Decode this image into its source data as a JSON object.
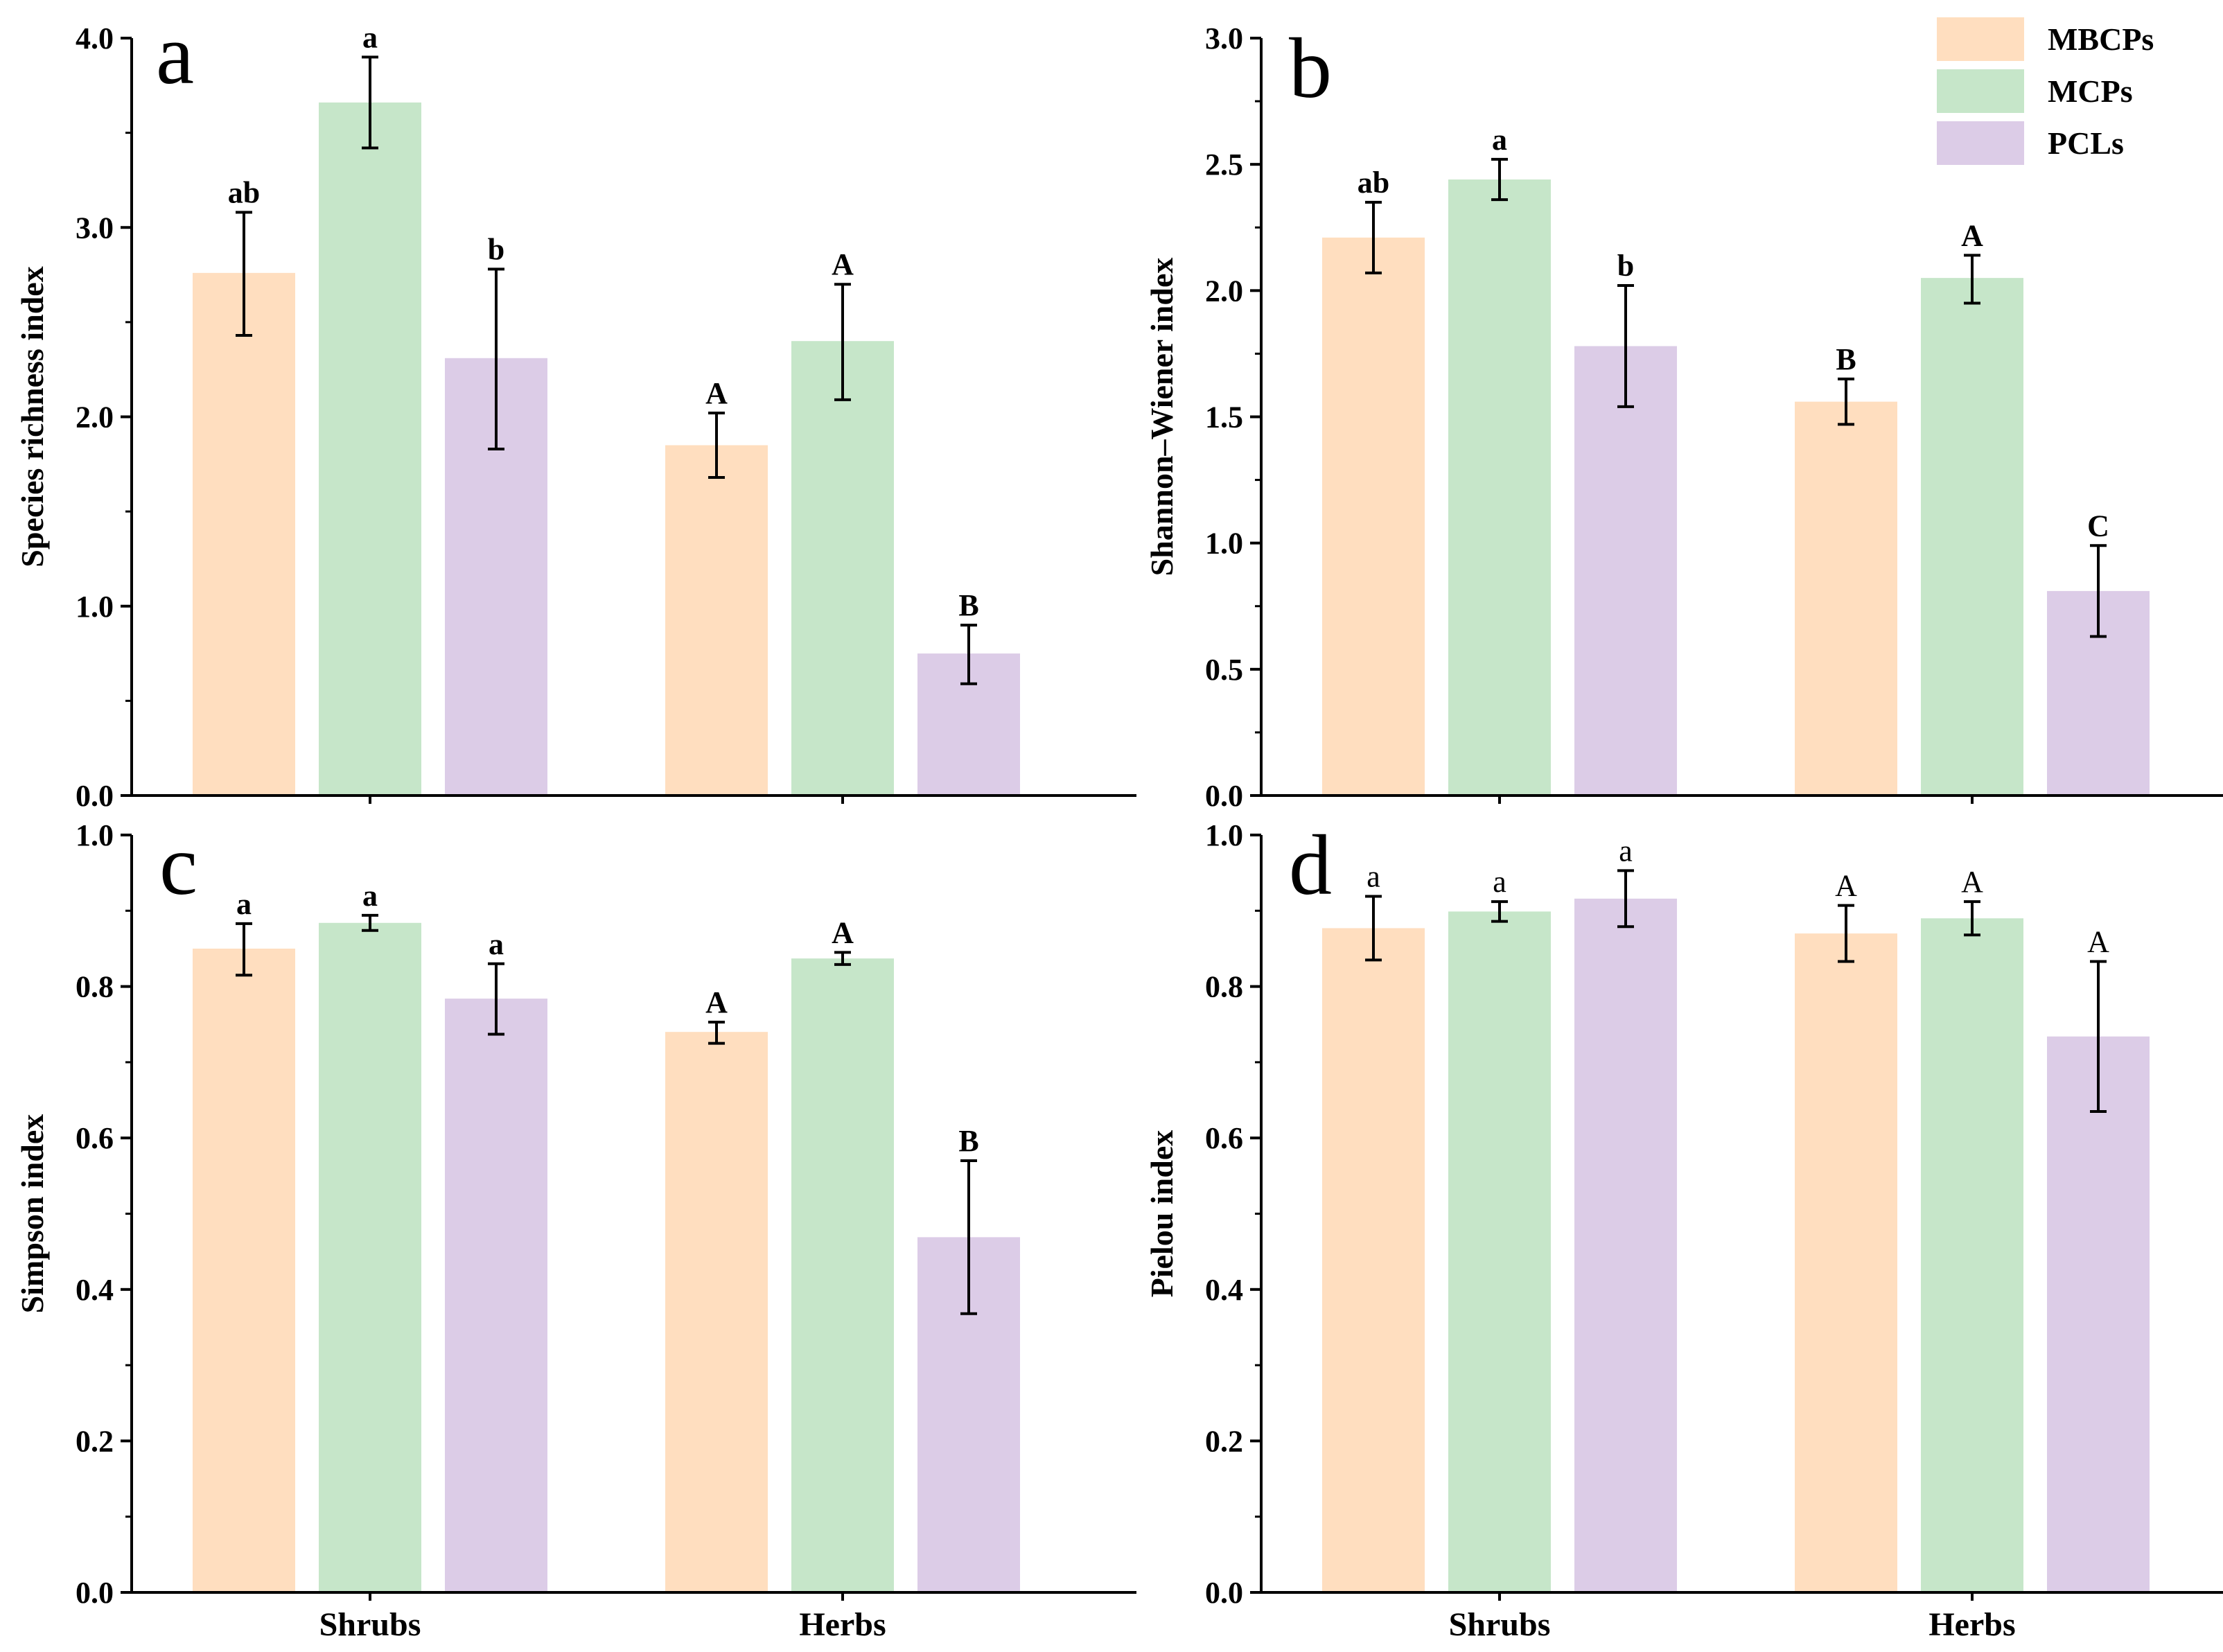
{
  "legend": [
    {
      "name": "MBCPs",
      "color": "#FFDEBF"
    },
    {
      "name": "MCPs",
      "color": "#C6E6C9"
    },
    {
      "name": "PCLs",
      "color": "#DCCCE7"
    }
  ],
  "chart_data": [
    {
      "panel": "a",
      "type": "bar",
      "ylabel": "Species richness index",
      "ylim": [
        0,
        4.0
      ],
      "yticks": [
        "0.0",
        "1.0",
        "2.0",
        "3.0",
        "4.0"
      ],
      "categories": [
        "Shrubs",
        "Herbs"
      ],
      "show_xlabels": false,
      "sig_bold": true,
      "series": [
        {
          "name": "MBCPs",
          "values": [
            2.76,
            1.85
          ],
          "err_low": [
            2.43,
            1.68
          ],
          "err_high": [
            3.08,
            2.02
          ],
          "labels": [
            "ab",
            "A"
          ]
        },
        {
          "name": "MCPs",
          "values": [
            3.66,
            2.4
          ],
          "err_low": [
            3.42,
            2.09
          ],
          "err_high": [
            3.9,
            2.7
          ],
          "labels": [
            "a",
            "A"
          ]
        },
        {
          "name": "PCLs",
          "values": [
            2.31,
            0.75
          ],
          "err_low": [
            1.83,
            0.59
          ],
          "err_high": [
            2.78,
            0.9
          ],
          "labels": [
            "b",
            "B"
          ]
        }
      ]
    },
    {
      "panel": "b",
      "type": "bar",
      "ylabel": "Shannon–Wiener index",
      "ylim": [
        0,
        3.0
      ],
      "yticks": [
        "0.0",
        "0.5",
        "1.0",
        "1.5",
        "2.0",
        "2.5",
        "3.0"
      ],
      "categories": [
        "Shrubs",
        "Herbs"
      ],
      "show_xlabels": false,
      "sig_bold": true,
      "series": [
        {
          "name": "MBCPs",
          "values": [
            2.21,
            1.56
          ],
          "err_low": [
            2.07,
            1.47
          ],
          "err_high": [
            2.35,
            1.65
          ],
          "labels": [
            "ab",
            "B"
          ]
        },
        {
          "name": "MCPs",
          "values": [
            2.44,
            2.05
          ],
          "err_low": [
            2.36,
            1.95
          ],
          "err_high": [
            2.52,
            2.14
          ],
          "labels": [
            "a",
            "A"
          ]
        },
        {
          "name": "PCLs",
          "values": [
            1.78,
            0.81
          ],
          "err_low": [
            1.54,
            0.63
          ],
          "err_high": [
            2.02,
            0.99
          ],
          "labels": [
            "b",
            "C"
          ]
        }
      ]
    },
    {
      "panel": "c",
      "type": "bar",
      "ylabel": "Simpson index",
      "ylim": [
        0,
        1.0
      ],
      "yticks": [
        "0.0",
        "0.2",
        "0.4",
        "0.6",
        "0.8",
        "1.0"
      ],
      "categories": [
        "Shrubs",
        "Herbs"
      ],
      "show_xlabels": true,
      "sig_bold": true,
      "series": [
        {
          "name": "MBCPs",
          "values": [
            0.85,
            0.74
          ],
          "err_low": [
            0.815,
            0.725
          ],
          "err_high": [
            0.883,
            0.753
          ],
          "labels": [
            "a",
            "A"
          ]
        },
        {
          "name": "MCPs",
          "values": [
            0.884,
            0.837
          ],
          "err_low": [
            0.874,
            0.829
          ],
          "err_high": [
            0.894,
            0.845
          ],
          "labels": [
            "a",
            "A"
          ]
        },
        {
          "name": "PCLs",
          "values": [
            0.784,
            0.469
          ],
          "err_low": [
            0.737,
            0.368
          ],
          "err_high": [
            0.83,
            0.57
          ],
          "labels": [
            "a",
            "B"
          ]
        }
      ]
    },
    {
      "panel": "d",
      "type": "bar",
      "ylabel": "Pielou index",
      "ylim": [
        0,
        1.0
      ],
      "yticks": [
        "0.0",
        "0.2",
        "0.4",
        "0.6",
        "0.8",
        "1.0"
      ],
      "categories": [
        "Shrubs",
        "Herbs"
      ],
      "show_xlabels": true,
      "sig_bold": false,
      "series": [
        {
          "name": "MBCPs",
          "values": [
            0.877,
            0.87
          ],
          "err_low": [
            0.835,
            0.833
          ],
          "err_high": [
            0.919,
            0.907
          ],
          "labels": [
            "a",
            "A"
          ]
        },
        {
          "name": "MCPs",
          "values": [
            0.899,
            0.89
          ],
          "err_low": [
            0.886,
            0.868
          ],
          "err_high": [
            0.912,
            0.912
          ],
          "labels": [
            "a",
            "A"
          ]
        },
        {
          "name": "PCLs",
          "values": [
            0.916,
            0.734
          ],
          "err_low": [
            0.879,
            0.635
          ],
          "err_high": [
            0.953,
            0.833
          ],
          "labels": [
            "a",
            "A"
          ]
        }
      ]
    }
  ]
}
